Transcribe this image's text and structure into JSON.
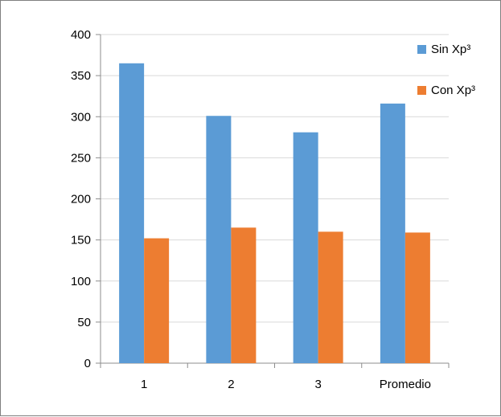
{
  "chart_data": {
    "type": "bar",
    "categories": [
      "1",
      "2",
      "3",
      "Promedio"
    ],
    "series": [
      {
        "name": "Sin Xp³",
        "values": [
          365,
          301,
          281,
          316
        ],
        "color": "#5b9bd5"
      },
      {
        "name": "Con Xp³",
        "values": [
          152,
          165,
          160,
          159
        ],
        "color": "#ed7d31"
      }
    ],
    "title": "",
    "xlabel": "",
    "ylabel": "",
    "ylim": [
      0,
      400
    ],
    "yticks": [
      0,
      50,
      100,
      150,
      200,
      250,
      300,
      350,
      400
    ],
    "ytick_labels": [
      "0",
      "50",
      "100",
      "150",
      "200",
      "250",
      "300",
      "350",
      "400"
    ],
    "grid": true,
    "legend_position": "top-right",
    "colors": {
      "gridline": "#d9d9d9",
      "axis": "#8c8c8c",
      "frame": "#7f7f7f"
    }
  }
}
